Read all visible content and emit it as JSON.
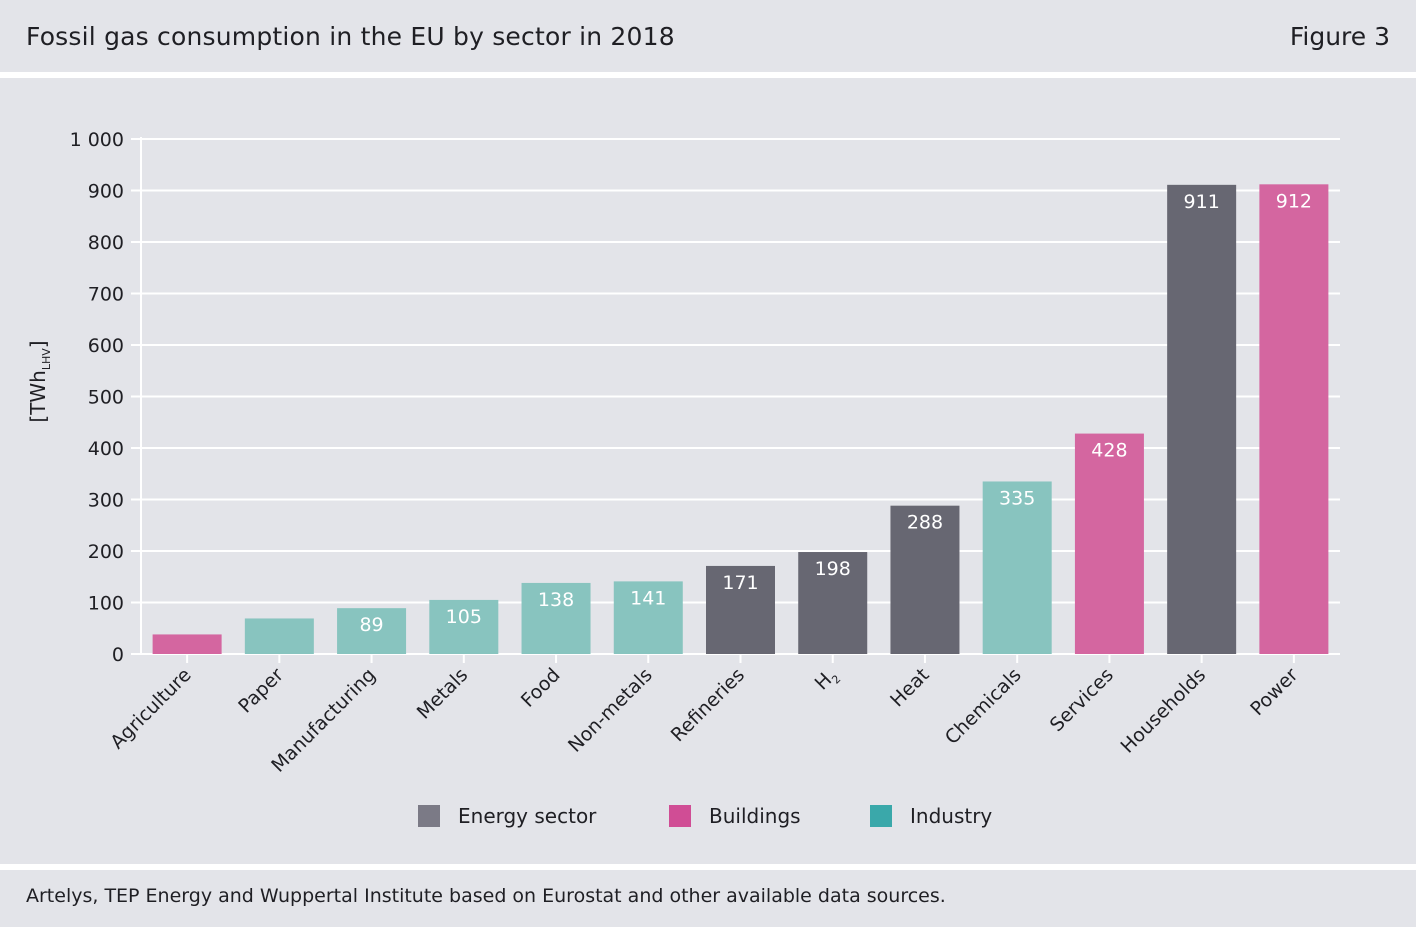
{
  "header": {
    "title": "Fossil gas consumption in the EU by sector in 2018",
    "figure": "Figure 3"
  },
  "footer": {
    "source": "Artelys, TEP Energy and Wuppertal Institute based on Eurostat and other available data sources."
  },
  "colors": {
    "energy": "#676772",
    "buildings": "#d466a0",
    "industry": "#88c4bf",
    "legend_energy": "#7b7a86",
    "legend_buildings": "#d04d95",
    "legend_industry": "#3aa8aa",
    "grid": "#ffffff",
    "text": "#1f1f24",
    "value_label": "#ffffff"
  },
  "legend": [
    {
      "key": "energy",
      "label": "Energy sector"
    },
    {
      "key": "buildings",
      "label": "Buildings"
    },
    {
      "key": "industry",
      "label": "Industry"
    }
  ],
  "chart_data": {
    "type": "bar",
    "title": "Fossil gas consumption in the EU by sector in 2018",
    "ylabel": "[TWh",
    "ylabel_sub": "LHV",
    "ylabel_close": "]",
    "ylim": [
      0,
      1000
    ],
    "yticks": [
      {
        "value": 0,
        "label": "0"
      },
      {
        "value": 100,
        "label": "100"
      },
      {
        "value": 200,
        "label": "200"
      },
      {
        "value": 300,
        "label": "300"
      },
      {
        "value": 400,
        "label": "400"
      },
      {
        "value": 500,
        "label": "500"
      },
      {
        "value": 600,
        "label": "600"
      },
      {
        "value": 700,
        "label": "700"
      },
      {
        "value": 800,
        "label": "800"
      },
      {
        "value": 900,
        "label": "900"
      },
      {
        "value": 1000,
        "label": "1 000"
      }
    ],
    "bars": [
      {
        "category": "Agriculture",
        "value": 38,
        "group": "buildings",
        "label": ""
      },
      {
        "category": "Paper",
        "value": 69,
        "group": "industry",
        "label": ""
      },
      {
        "category": "Manufacturing",
        "value": 89,
        "group": "industry",
        "label": "89"
      },
      {
        "category": "Metals",
        "value": 105,
        "group": "industry",
        "label": "105"
      },
      {
        "category": "Food",
        "value": 138,
        "group": "industry",
        "label": "138"
      },
      {
        "category": "Non-metals",
        "value": 141,
        "group": "industry",
        "label": "141"
      },
      {
        "category": "Refineries",
        "value": 171,
        "group": "energy",
        "label": "171"
      },
      {
        "category": "H",
        "category_sub": "2",
        "value": 198,
        "group": "energy",
        "label": "198"
      },
      {
        "category": "Heat",
        "value": 288,
        "group": "energy",
        "label": "288"
      },
      {
        "category": "Chemicals",
        "value": 335,
        "group": "industry",
        "label": "335"
      },
      {
        "category": "Services",
        "value": 428,
        "group": "buildings",
        "label": "428"
      },
      {
        "category": "Households",
        "value": 911,
        "group": "energy",
        "label": "911"
      },
      {
        "category": "Power",
        "value": 912,
        "group": "buildings",
        "label": "912"
      }
    ]
  }
}
